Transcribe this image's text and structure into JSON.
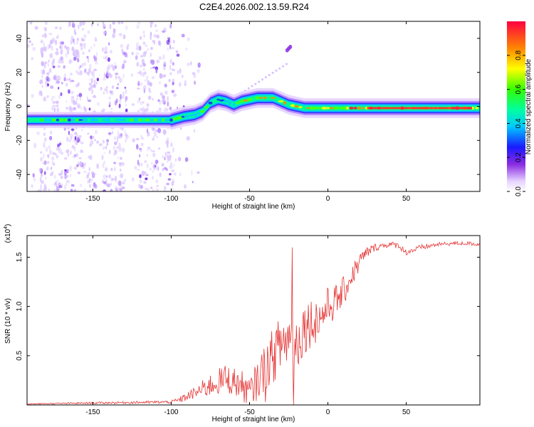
{
  "title": "C2E4.2026.002.13.59.R24",
  "chart_data": [
    {
      "type": "heatmap",
      "xlabel": "Height of straight line (km)",
      "ylabel": "Frequency (Hz)",
      "xlim": [
        -192,
        97
      ],
      "ylim": [
        -50,
        50
      ],
      "xticks": [
        -150,
        -100,
        -50,
        0,
        50
      ],
      "yticks": [
        -40,
        -20,
        0,
        20,
        40
      ],
      "ridge_x": [
        -192,
        -160,
        -130,
        -100,
        -92,
        -85,
        -80,
        -75,
        -70,
        -65,
        -60,
        -55,
        -50,
        -45,
        -40,
        -35,
        -30,
        -25,
        -20,
        -15,
        -10,
        -5,
        0,
        5,
        10,
        20,
        40,
        60,
        80,
        97
      ],
      "ridge_freq": [
        -8,
        -8,
        -8,
        -8,
        -6,
        -5,
        -3,
        2,
        4,
        3,
        1,
        3,
        4,
        5,
        5,
        5,
        3,
        1,
        0,
        -1,
        -1,
        -1,
        -1,
        -1,
        -1,
        -1,
        -1,
        -1,
        -1,
        -1
      ],
      "colorbar": {
        "label": "Normalized spectral amplitude",
        "ticks": [
          "0.0",
          "0.2",
          "0.4",
          "0.6",
          "0.8"
        ],
        "range": [
          0,
          1
        ]
      }
    },
    {
      "type": "line",
      "xlabel": "Height of straight line (km)",
      "ylabel": "SNR (10 * v/v)",
      "multiplier": "(x10",
      "multiplier_exp": "4",
      "multiplier_close": ")",
      "xlim": [
        -192,
        97
      ],
      "ylim": [
        0,
        1.72
      ],
      "xticks": [
        -150,
        -100,
        -50,
        0,
        50
      ],
      "yticks": [
        0.5,
        1.0,
        1.5
      ],
      "yticklabels": [
        "0.5",
        "1.0",
        "1.5"
      ],
      "color": "#e53535",
      "trend_x": [
        -192,
        -150,
        -100,
        -95,
        -85,
        -75,
        -65,
        -55,
        -50,
        -45,
        -40,
        -35,
        -30,
        -25,
        -20,
        -15,
        -10,
        -5,
        0,
        5,
        10,
        15,
        20,
        25,
        30,
        35,
        40,
        45,
        50,
        60,
        70,
        80,
        90,
        97
      ],
      "trend_y": [
        0.01,
        0.02,
        0.03,
        0.05,
        0.12,
        0.2,
        0.27,
        0.2,
        0.12,
        0.25,
        0.38,
        0.5,
        0.62,
        0.68,
        0.62,
        0.8,
        0.85,
        0.88,
        1.0,
        1.05,
        1.15,
        1.3,
        1.45,
        1.55,
        1.6,
        1.62,
        1.63,
        1.62,
        1.55,
        1.6,
        1.63,
        1.64,
        1.64,
        1.63
      ],
      "noise_amp": [
        0.005,
        0.01,
        0.015,
        0.03,
        0.06,
        0.12,
        0.15,
        0.15,
        0.15,
        0.2,
        0.25,
        0.28,
        0.3,
        0.3,
        0.3,
        0.28,
        0.25,
        0.22,
        0.2,
        0.18,
        0.15,
        0.12,
        0.1,
        0.06,
        0.04,
        0.03,
        0.03,
        0.03,
        0.03,
        0.03,
        0.02,
        0.02,
        0.02,
        0.02
      ],
      "spikes": [
        {
          "x": -23,
          "y": 1.6
        },
        {
          "x": -22,
          "y": 0.0
        },
        {
          "x": -40,
          "y": 0.03
        },
        {
          "x": -52,
          "y": 0.02
        }
      ]
    }
  ]
}
